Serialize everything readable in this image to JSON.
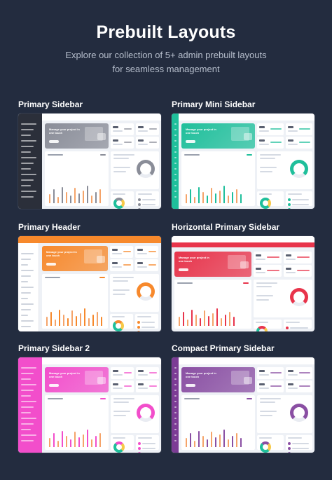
{
  "header": {
    "title": "Prebuilt Layouts",
    "subtitle_line1": "Explore our collection of 5+ admin prebuilt layouts",
    "subtitle_line2": "for seamless management"
  },
  "layouts": [
    {
      "label": "Primary Sidebar",
      "accent": "#8a8d98",
      "sidebar": "#2b2f3a",
      "variant": "sidebar"
    },
    {
      "label": "Primary Mini Sidebar",
      "accent": "#1fbf9b",
      "sidebar": "#1fbf9b",
      "variant": "mini"
    },
    {
      "label": "Primary Header",
      "accent": "#f7892c",
      "sidebar": "#ffffff",
      "variant": "header"
    },
    {
      "label": "Horizontal Primary Sidebar",
      "accent": "#e8344b",
      "sidebar": "#e8344b",
      "variant": "horizontal"
    },
    {
      "label": "Primary Sidebar 2",
      "accent": "#f24ecb",
      "sidebar": "#f24ecb",
      "variant": "sidebar2"
    },
    {
      "label": "Compact Primary Sidebar",
      "accent": "#8a4fa3",
      "sidebar": "#7c3c95",
      "variant": "compact"
    }
  ],
  "preview": {
    "hero_text": "Manage your project in one touch"
  }
}
